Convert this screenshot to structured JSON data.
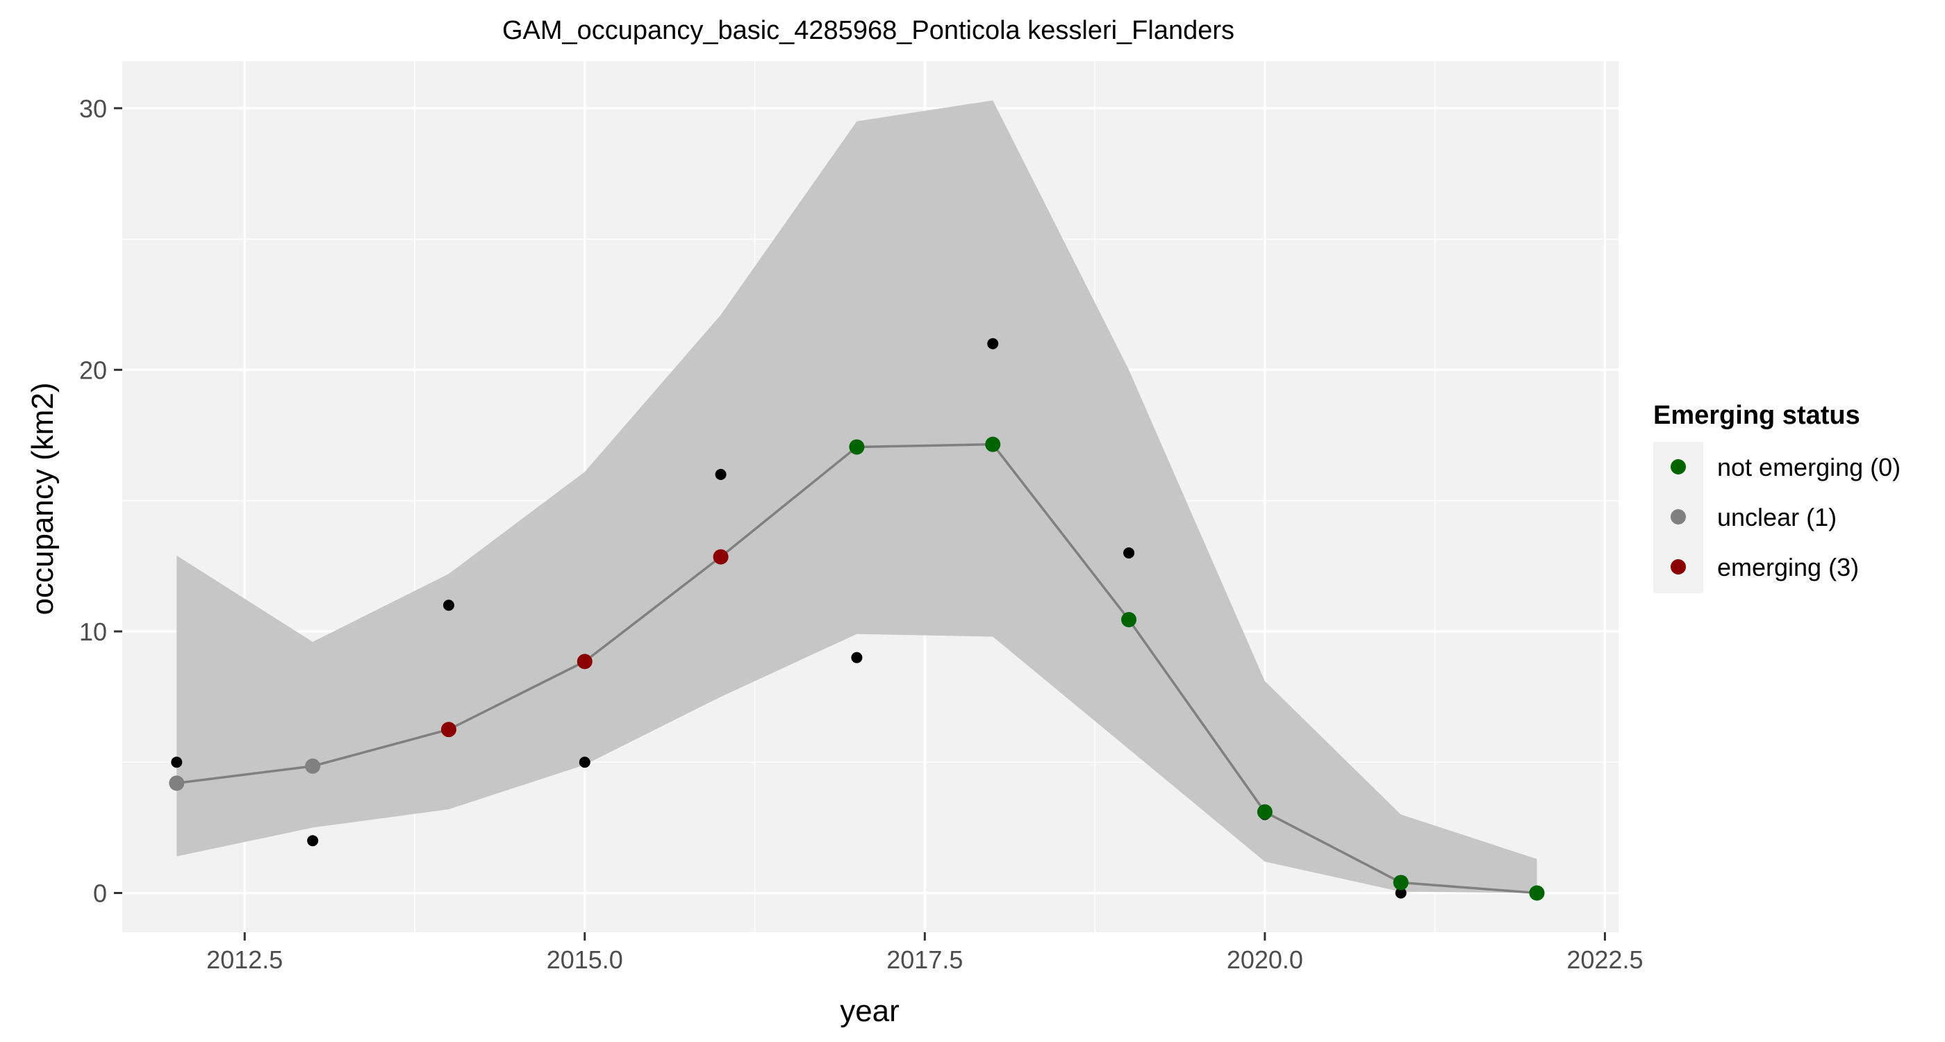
{
  "chart_data": {
    "type": "line",
    "title": "GAM_occupancy_basic_4285968_Ponticola kessleri_Flanders",
    "xlabel": "year",
    "ylabel": "occupancy (km2)",
    "xlim": [
      2011.6,
      2022.6
    ],
    "ylim": [
      -1.5,
      31.8
    ],
    "x_ticks": [
      2012.5,
      2015.0,
      2017.5,
      2020.0,
      2022.5
    ],
    "x_tick_labels": [
      "2012.5",
      "2015.0",
      "2017.5",
      "2020.0",
      "2022.5"
    ],
    "y_ticks": [
      0,
      10,
      20,
      30
    ],
    "y_tick_labels": [
      "0",
      "10",
      "20",
      "30"
    ],
    "grid": true,
    "panel_background": "#f2f2f2",
    "x": [
      2012,
      2013,
      2014,
      2015,
      2016,
      2017,
      2018,
      2019,
      2020,
      2021,
      2022
    ],
    "observed": [
      5,
      2,
      11,
      5,
      16,
      9,
      21,
      13,
      3,
      0,
      0
    ],
    "fit": [
      4.2,
      4.85,
      6.25,
      8.85,
      12.85,
      17.05,
      17.15,
      10.45,
      3.1,
      0.4,
      0.0
    ],
    "lower": [
      1.4,
      2.5,
      3.2,
      4.9,
      7.5,
      9.9,
      9.8,
      5.5,
      1.2,
      0.05,
      0.0
    ],
    "upper": [
      12.9,
      9.6,
      12.2,
      16.1,
      22.1,
      29.5,
      30.3,
      20.0,
      8.1,
      3.0,
      1.3
    ],
    "status": [
      1,
      1,
      3,
      3,
      3,
      0,
      0,
      0,
      0,
      0,
      0
    ],
    "legend": {
      "title": "Emerging status",
      "position": "right",
      "entries": [
        {
          "code": 0,
          "label": "not emerging (0)",
          "color": "#006400"
        },
        {
          "code": 1,
          "label": "unclear (1)",
          "color": "#808080"
        },
        {
          "code": 3,
          "label": "emerging (3)",
          "color": "#8b0000"
        }
      ]
    },
    "colors": {
      "ribbon": "#c6c6c6",
      "fit_line": "#808080",
      "observed_point": "#000000"
    }
  }
}
